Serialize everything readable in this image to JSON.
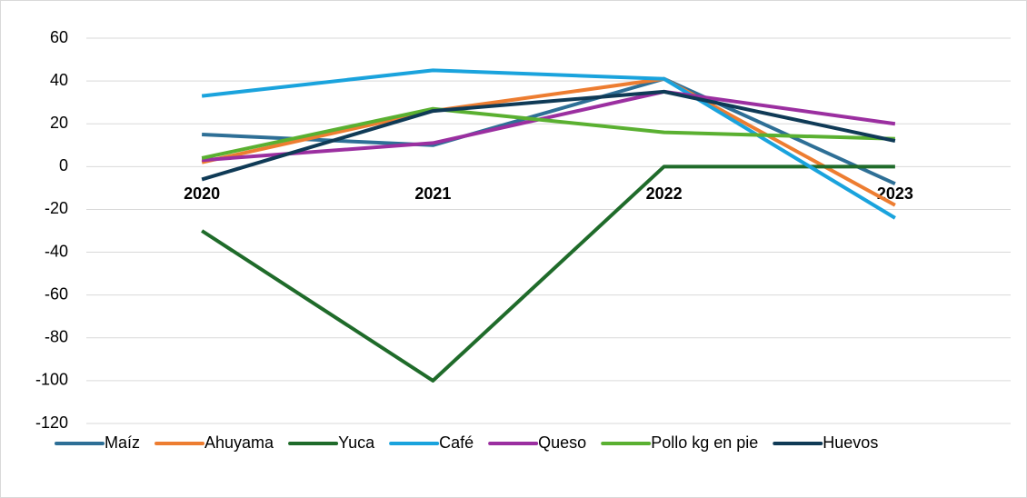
{
  "chart_data": {
    "type": "line",
    "categories": [
      "2020",
      "2021",
      "2022",
      "2023"
    ],
    "series": [
      {
        "name": "Maíz",
        "color": "#2e6f96",
        "values": [
          15,
          10,
          41,
          -8
        ]
      },
      {
        "name": "Ahuyama",
        "color": "#ed7d31",
        "values": [
          2,
          26,
          41,
          -18
        ]
      },
      {
        "name": "Yuca",
        "color": "#1f6b2a",
        "values": [
          -30,
          -100,
          0,
          0
        ]
      },
      {
        "name": "Café",
        "color": "#1aa3dd",
        "values": [
          33,
          45,
          41,
          -24
        ]
      },
      {
        "name": "Queso",
        "color": "#9b2fa0",
        "values": [
          3,
          11,
          35,
          20
        ]
      },
      {
        "name": "Pollo kg en pie",
        "color": "#5ab031",
        "values": [
          4,
          27,
          16,
          13
        ]
      },
      {
        "name": "Huevos",
        "color": "#0f3a56",
        "values": [
          -6,
          26,
          35,
          12
        ]
      }
    ],
    "ylim": [
      -120,
      60
    ],
    "yticks": [
      -120,
      -100,
      -80,
      -60,
      -40,
      -20,
      0,
      20,
      40,
      60
    ],
    "grid": true,
    "legend": "bottom"
  }
}
